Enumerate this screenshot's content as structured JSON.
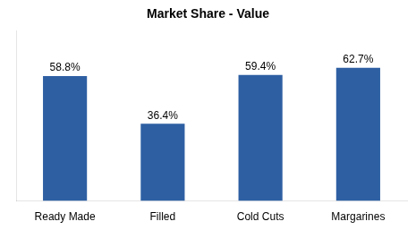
{
  "chart_data": {
    "type": "bar",
    "title": "Market Share - Value",
    "categories": [
      "Ready Made",
      "Filled",
      "Cold Cuts",
      "Margarines"
    ],
    "values": [
      58.8,
      36.4,
      59.4,
      62.7
    ],
    "value_labels": [
      "58.8%",
      "36.4%",
      "59.4%",
      "62.7%"
    ],
    "color": "#2E5FA3",
    "ylim": [
      0,
      80
    ],
    "grid": false,
    "data_labels": true,
    "tick_labels": "x"
  }
}
